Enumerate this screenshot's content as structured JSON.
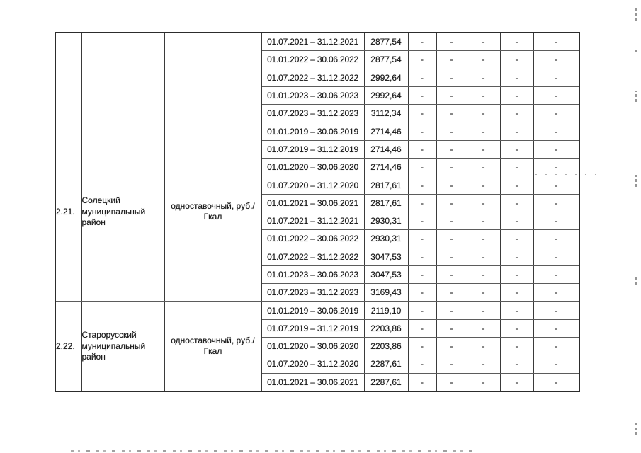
{
  "page": {
    "background": "#ffffff",
    "ink_color": "#1e1e1e",
    "border_color": "#2c2c2c"
  },
  "table": {
    "dash": "-",
    "dash_columns": 5,
    "sections": [
      {
        "number": "",
        "district": "",
        "tariff_type": "",
        "rows": [
          {
            "period": "01.07.2021 – 31.12.2021",
            "value": "2877,54"
          },
          {
            "period": "01.01.2022 – 30.06.2022",
            "value": "2877,54"
          },
          {
            "period": "01.07.2022 – 31.12.2022",
            "value": "2992,64"
          },
          {
            "period": "01.01.2023 – 30.06.2023",
            "value": "2992,64"
          },
          {
            "period": "01.07.2023 – 31.12.2023",
            "value": "3112,34"
          }
        ]
      },
      {
        "number": "2.21.",
        "district": "Солецкий муниципальный район",
        "tariff_type": "одноставочный, руб./Гкал",
        "rows": [
          {
            "period": "01.01.2019 – 30.06.2019",
            "value": "2714,46"
          },
          {
            "period": "01.07.2019 – 31.12.2019",
            "value": "2714,46"
          },
          {
            "period": "01.01.2020 – 30.06.2020",
            "value": "2714,46"
          },
          {
            "period": "01.07.2020 – 31.12.2020",
            "value": "2817,61"
          },
          {
            "period": "01.01.2021 – 30.06.2021",
            "value": "2817,61"
          },
          {
            "period": "01.07.2021 – 31.12.2021",
            "value": "2930,31"
          },
          {
            "period": "01.01.2022 – 30.06.2022",
            "value": "2930,31"
          },
          {
            "period": "01.07.2022 – 31.12.2022",
            "value": "3047,53"
          },
          {
            "period": "01.01.2023 – 30.06.2023",
            "value": "3047,53"
          },
          {
            "period": "01.07.2023 – 31.12.2023",
            "value": "3169,43"
          }
        ]
      },
      {
        "number": "2.22.",
        "district": "Старорусский муниципальный район",
        "tariff_type": "одноставочный, руб./Гкал",
        "rows": [
          {
            "period": "01.01.2019 – 30.06.2019",
            "value": "2119,10"
          },
          {
            "period": "01.07.2019 – 31.12.2019",
            "value": "2203,86"
          },
          {
            "period": "01.01.2020 – 30.06.2020",
            "value": "2203,86"
          },
          {
            "period": "01.07.2020 – 31.12.2020",
            "value": "2287,61"
          },
          {
            "period": "01.01.2021 – 30.06.2021",
            "value": "2287,61"
          }
        ]
      }
    ]
  }
}
